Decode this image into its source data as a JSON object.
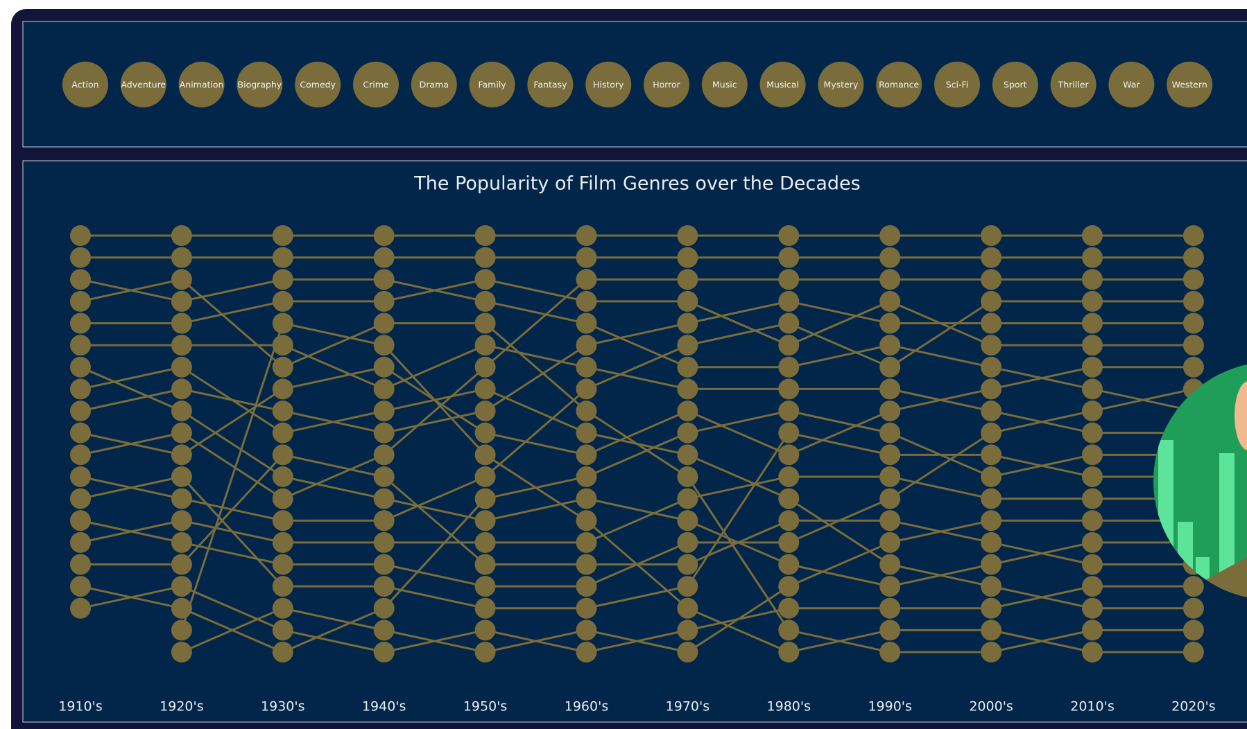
{
  "chart_data": {
    "type": "bump",
    "title": "The Popularity of Film Genres over the Decades",
    "categories": [
      "1910's",
      "1920's",
      "1930's",
      "1940's",
      "1950's",
      "1960's",
      "1970's",
      "1980's",
      "1990's",
      "2000's",
      "2010's",
      "2020's"
    ],
    "ylim": [
      20,
      1
    ],
    "color": "#7a6c3b",
    "series": [
      {
        "name": "Action",
        "values": [
          9,
          8,
          9,
          10,
          9,
          6,
          5,
          4,
          5,
          5,
          5,
          5
        ]
      },
      {
        "name": "Adventure",
        "values": [
          6,
          6,
          6,
          8,
          6,
          7,
          8,
          8,
          8,
          9,
          10,
          10
        ]
      },
      {
        "name": "Animation",
        "values": [
          null,
          20,
          18,
          19,
          20,
          19,
          20,
          17,
          15,
          14,
          14,
          14
        ]
      },
      {
        "name": "Biography",
        "values": [
          14,
          15,
          16,
          16,
          17,
          17,
          15,
          15,
          13,
          10,
          9,
          8
        ]
      },
      {
        "name": "Comedy",
        "values": [
          2,
          2,
          2,
          2,
          2,
          2,
          2,
          2,
          2,
          2,
          2,
          2
        ]
      },
      {
        "name": "Crime",
        "values": [
          5,
          5,
          4,
          4,
          3,
          4,
          4,
          6,
          4,
          6,
          6,
          6
        ]
      },
      {
        "name": "Drama",
        "values": [
          1,
          1,
          1,
          1,
          1,
          1,
          1,
          1,
          1,
          1,
          1,
          1
        ]
      },
      {
        "name": "Family",
        "values": [
          15,
          14,
          15,
          15,
          15,
          15,
          13,
          12,
          12,
          13,
          13,
          13
        ]
      },
      {
        "name": "Fantasy",
        "values": [
          13,
          12,
          17,
          17,
          18,
          18,
          17,
          10,
          11,
          11,
          12,
          12
        ]
      },
      {
        "name": "History",
        "values": [
          7,
          9,
          12,
          13,
          14,
          13,
          14,
          16,
          17,
          16,
          15,
          15
        ]
      },
      {
        "name": "Horror",
        "values": [
          12,
          13,
          14,
          14,
          12,
          8,
          6,
          5,
          7,
          4,
          4,
          4
        ]
      },
      {
        "name": "Music",
        "values": [
          16,
          16,
          11,
          12,
          16,
          16,
          16,
          14,
          14,
          15,
          16,
          16
        ]
      },
      {
        "name": "Musical",
        "values": [
          null,
          19,
          5,
          6,
          11,
          14,
          18,
          20,
          19,
          19,
          20,
          20
        ]
      },
      {
        "name": "Mystery",
        "values": [
          10,
          11,
          8,
          7,
          10,
          11,
          9,
          11,
          9,
          8,
          7,
          7
        ]
      },
      {
        "name": "Romance",
        "values": [
          3,
          4,
          3,
          3,
          4,
          5,
          7,
          7,
          6,
          7,
          8,
          9
        ]
      },
      {
        "name": "Sci-Fi",
        "values": [
          17,
          18,
          20,
          18,
          13,
          12,
          10,
          9,
          10,
          12,
          11,
          11
        ]
      },
      {
        "name": "Sport",
        "values": [
          18,
          17,
          19,
          20,
          19,
          20,
          19,
          18,
          18,
          18,
          17,
          17
        ]
      },
      {
        "name": "Thriller",
        "values": [
          11,
          10,
          13,
          11,
          7,
          3,
          3,
          3,
          3,
          3,
          3,
          3
        ]
      },
      {
        "name": "War",
        "values": [
          8,
          7,
          10,
          9,
          8,
          10,
          11,
          13,
          16,
          17,
          18,
          18
        ]
      },
      {
        "name": "Western",
        "values": [
          4,
          3,
          7,
          5,
          5,
          9,
          12,
          19,
          20,
          20,
          19,
          19
        ]
      }
    ]
  }
}
